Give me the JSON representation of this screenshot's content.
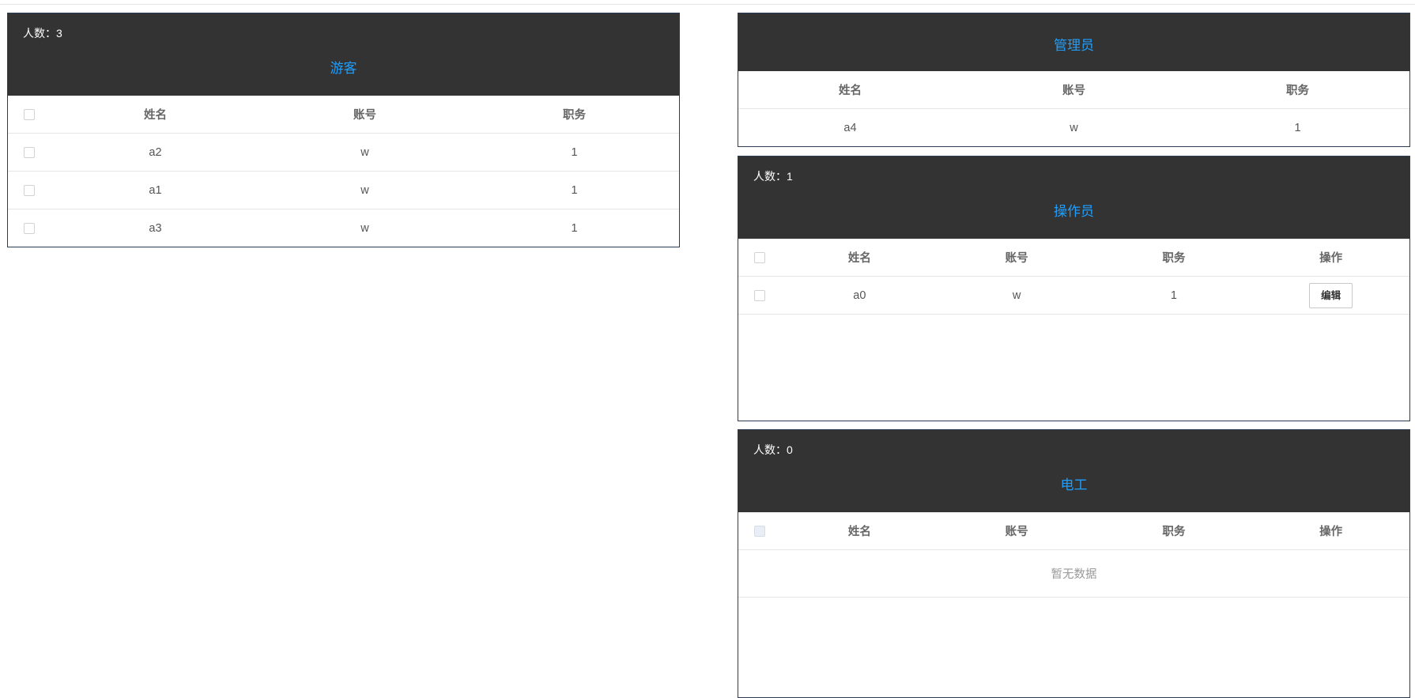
{
  "count_label": "人数：",
  "columns": [
    "姓名",
    "账号",
    "职务"
  ],
  "action_column": "操作",
  "edit_label": "编辑",
  "empty_text": "暂无数据",
  "colors": {
    "header_bg": "#333333",
    "title": "#1e9fff",
    "border": "#2b3a55"
  },
  "panels": {
    "guest": {
      "title": "游客",
      "count": "3",
      "rows": [
        [
          "a2",
          "w",
          "1"
        ],
        [
          "a1",
          "w",
          "1"
        ],
        [
          "a3",
          "w",
          "1"
        ]
      ]
    },
    "admin": {
      "title": "管理员",
      "rows": [
        [
          "a4",
          "w",
          "1"
        ]
      ]
    },
    "operator": {
      "title": "操作员",
      "count": "1",
      "rows": [
        [
          "a0",
          "w",
          "1"
        ]
      ]
    },
    "electrician": {
      "title": "电工",
      "count": "0",
      "rows": []
    }
  }
}
